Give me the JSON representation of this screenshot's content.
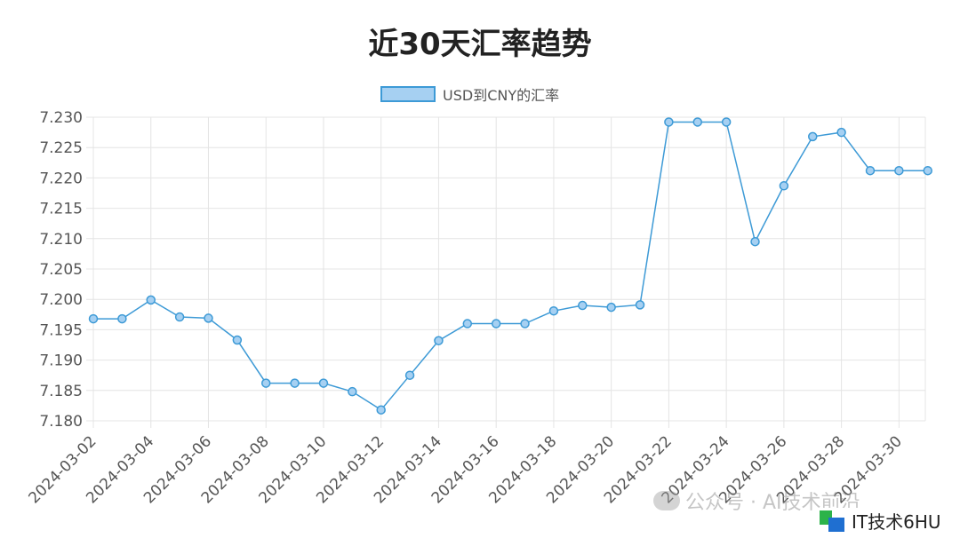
{
  "chart_data": {
    "type": "line",
    "title": "近30天汇率趋势",
    "legend": {
      "label": "USD到CNY的汇率",
      "placement": "top-center"
    },
    "ylim": [
      7.18,
      7.23
    ],
    "yticks": [
      "7.230",
      "7.225",
      "7.220",
      "7.215",
      "7.210",
      "7.205",
      "7.200",
      "7.195",
      "7.190",
      "7.185",
      "7.180"
    ],
    "grid": true,
    "x": [
      "2024-03-02",
      "2024-03-03",
      "2024-03-04",
      "2024-03-05",
      "2024-03-06",
      "2024-03-07",
      "2024-03-08",
      "2024-03-09",
      "2024-03-10",
      "2024-03-11",
      "2024-03-12",
      "2024-03-13",
      "2024-03-14",
      "2024-03-15",
      "2024-03-16",
      "2024-03-17",
      "2024-03-18",
      "2024-03-19",
      "2024-03-20",
      "2024-03-21",
      "2024-03-22",
      "2024-03-23",
      "2024-03-24",
      "2024-03-25",
      "2024-03-26",
      "2024-03-27",
      "2024-03-28",
      "2024-03-29",
      "2024-03-30",
      "2024-03-31"
    ],
    "xtick_labels": [
      "2024-03-02",
      "2024-03-04",
      "2024-03-06",
      "2024-03-08",
      "2024-03-10",
      "2024-03-12",
      "2024-03-14",
      "2024-03-16",
      "2024-03-18",
      "2024-03-20",
      "2024-03-22",
      "2024-03-24",
      "2024-03-26",
      "2024-03-28",
      "2024-03-30"
    ],
    "series": [
      {
        "name": "USD到CNY的汇率",
        "values": [
          7.1968,
          7.1968,
          7.1999,
          7.1971,
          7.1969,
          7.1933,
          7.1862,
          7.1862,
          7.1862,
          7.1848,
          7.1818,
          7.1875,
          7.1932,
          7.196,
          7.196,
          7.196,
          7.1981,
          7.199,
          7.1987,
          7.1991,
          7.2292,
          7.2292,
          7.2292,
          7.2095,
          7.2187,
          7.2268,
          7.2275,
          7.2212,
          7.2212,
          7.2212
        ]
      }
    ],
    "colors": {
      "line": "#3d9ad6",
      "point_fill": "#a6d0f2",
      "grid": "#e4e4e4",
      "tick_text": "#555555"
    }
  },
  "watermark": {
    "text": "公众号 · AI技术前沿"
  },
  "logo": {
    "text": "IT技术6HU"
  }
}
